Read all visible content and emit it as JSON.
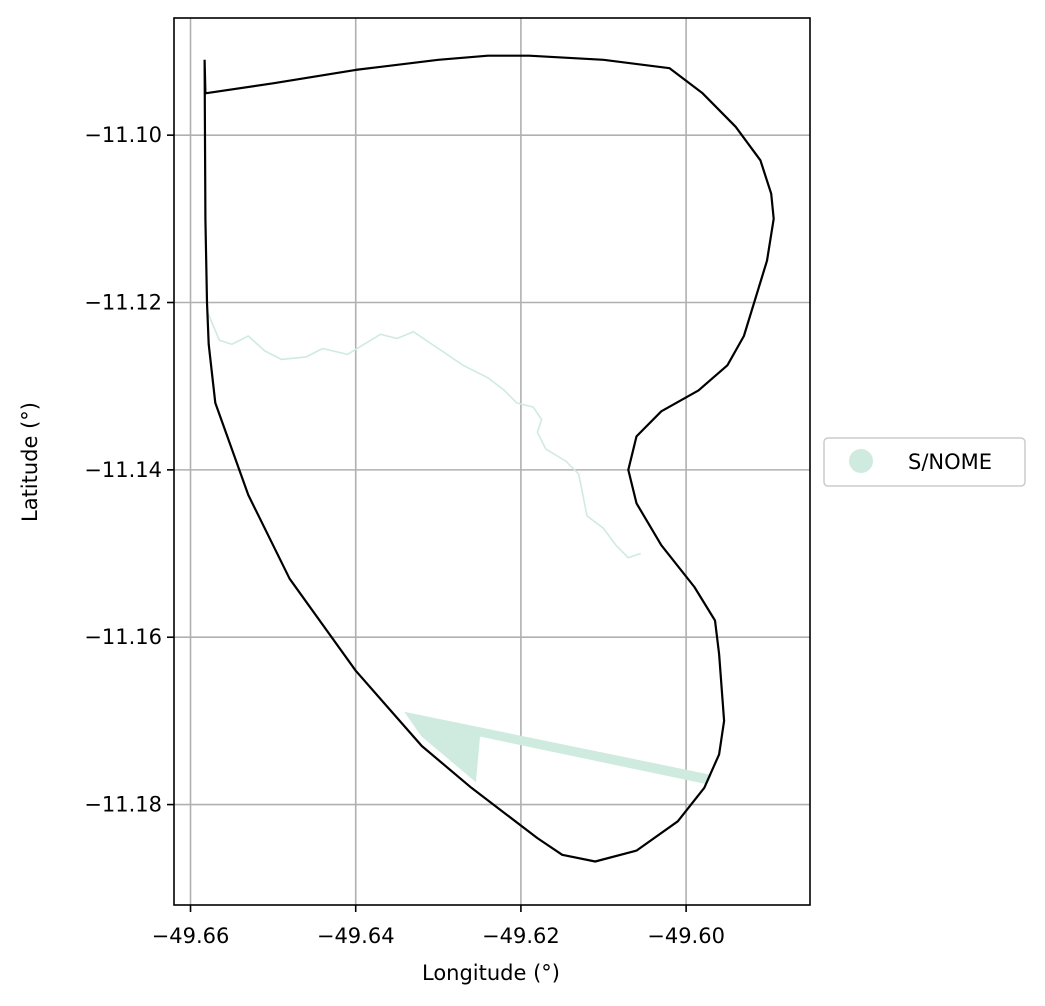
{
  "chart_data": {
    "type": "map",
    "xlabel": "Longitude (°)",
    "ylabel": "Latitude (°)",
    "xlim": [
      -49.662,
      -49.585
    ],
    "ylim": [
      -11.192,
      -11.086
    ],
    "xticks": [
      -49.66,
      -49.64,
      -49.62,
      -49.6
    ],
    "xtick_labels": [
      "−49.66",
      "−49.64",
      "−49.62",
      "−49.60"
    ],
    "yticks": [
      -11.1,
      -11.12,
      -11.14,
      -11.16,
      -11.18
    ],
    "ytick_labels": [
      "−11.10",
      "−11.12",
      "−11.14",
      "−11.16",
      "−11.18"
    ],
    "grid": true,
    "legend": {
      "placement": "right",
      "entries": [
        {
          "label": "S/NOME",
          "color": "#cfebdf"
        }
      ]
    },
    "colors": {
      "boundary": "#000000",
      "feature": "#cfebdf",
      "grid": "#b0b0b0"
    },
    "boundary": [
      [
        -49.6583,
        -11.091
      ],
      [
        -49.6582,
        -11.095
      ],
      [
        -49.65,
        -11.0938
      ],
      [
        -49.64,
        -11.0922
      ],
      [
        -49.63,
        -11.091
      ],
      [
        -49.624,
        -11.0905
      ],
      [
        -49.619,
        -11.0905
      ],
      [
        -49.61,
        -11.091
      ],
      [
        -49.602,
        -11.092
      ],
      [
        -49.598,
        -11.095
      ],
      [
        -49.594,
        -11.099
      ],
      [
        -49.591,
        -11.103
      ],
      [
        -49.5897,
        -11.107
      ],
      [
        -49.5894,
        -11.11
      ],
      [
        -49.5902,
        -11.115
      ],
      [
        -49.593,
        -11.124
      ],
      [
        -49.595,
        -11.1275
      ],
      [
        -49.5985,
        -11.1305
      ],
      [
        -49.603,
        -11.133
      ],
      [
        -49.606,
        -11.136
      ],
      [
        -49.607,
        -11.14
      ],
      [
        -49.606,
        -11.144
      ],
      [
        -49.603,
        -11.149
      ],
      [
        -49.599,
        -11.154
      ],
      [
        -49.5965,
        -11.158
      ],
      [
        -49.596,
        -11.162
      ],
      [
        -49.5954,
        -11.17
      ],
      [
        -49.596,
        -11.174
      ],
      [
        -49.5978,
        -11.178
      ],
      [
        -49.601,
        -11.182
      ],
      [
        -49.606,
        -11.1855
      ],
      [
        -49.611,
        -11.1868
      ],
      [
        -49.615,
        -11.186
      ],
      [
        -49.618,
        -11.184
      ],
      [
        -49.626,
        -11.178
      ],
      [
        -49.632,
        -11.173
      ],
      [
        -49.64,
        -11.164
      ],
      [
        -49.648,
        -11.153
      ],
      [
        -49.653,
        -11.143
      ],
      [
        -49.657,
        -11.132
      ],
      [
        -49.6578,
        -11.125
      ],
      [
        -49.658,
        -11.12
      ],
      [
        -49.6582,
        -11.11
      ],
      [
        -49.6583,
        -11.091
      ]
    ],
    "river": [
      [
        -49.658,
        -11.121
      ],
      [
        -49.6565,
        -11.1245
      ],
      [
        -49.655,
        -11.125
      ],
      [
        -49.653,
        -11.124
      ],
      [
        -49.651,
        -11.1258
      ],
      [
        -49.649,
        -11.1268
      ],
      [
        -49.646,
        -11.1265
      ],
      [
        -49.644,
        -11.1255
      ],
      [
        -49.641,
        -11.1262
      ],
      [
        -49.639,
        -11.125
      ],
      [
        -49.637,
        -11.1238
      ],
      [
        -49.635,
        -11.1243
      ],
      [
        -49.633,
        -11.1235
      ],
      [
        -49.63,
        -11.1255
      ],
      [
        -49.627,
        -11.1275
      ],
      [
        -49.624,
        -11.129
      ],
      [
        -49.622,
        -11.1305
      ],
      [
        -49.6205,
        -11.132
      ],
      [
        -49.6185,
        -11.1325
      ],
      [
        -49.6175,
        -11.134
      ],
      [
        -49.618,
        -11.1355
      ],
      [
        -49.617,
        -11.1375
      ],
      [
        -49.6145,
        -11.139
      ],
      [
        -49.613,
        -11.1405
      ],
      [
        -49.6125,
        -11.143
      ],
      [
        -49.612,
        -11.1455
      ],
      [
        -49.61,
        -11.147
      ],
      [
        -49.6085,
        -11.149
      ],
      [
        -49.607,
        -11.1505
      ],
      [
        -49.6055,
        -11.15
      ]
    ],
    "polygon_feature": [
      [
        -49.634,
        -11.169
      ],
      [
        -49.597,
        -11.1765
      ],
      [
        -49.5975,
        -11.1775
      ],
      [
        -49.625,
        -11.1718
      ],
      [
        -49.6255,
        -11.1772
      ],
      [
        -49.632,
        -11.1718
      ]
    ]
  }
}
